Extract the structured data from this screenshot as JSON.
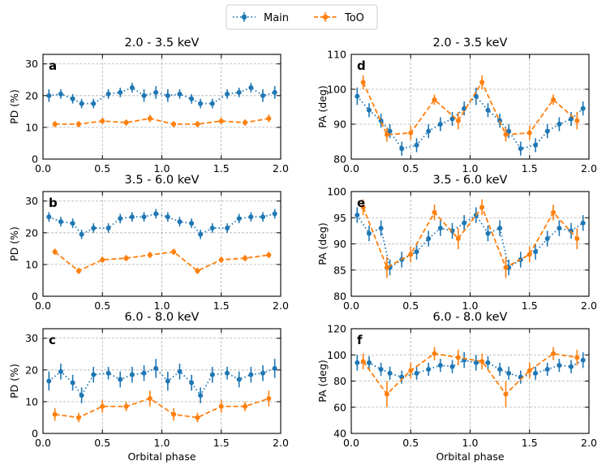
{
  "legend": {
    "location": "upper center",
    "entries": [
      {
        "label": "Main",
        "color": "#1f77b4",
        "style": "dotted"
      },
      {
        "label": "ToO",
        "color": "#ff7f0e",
        "style": "dashed"
      }
    ]
  },
  "chart_data": [
    {
      "panel": "a",
      "type": "line",
      "title": "2.0 - 3.5 keV",
      "xlabel": "",
      "ylabel": "PD (%)",
      "xlim": [
        0.0,
        2.0
      ],
      "ylim": [
        0,
        33
      ],
      "xticks": [
        0.0,
        0.5,
        1.0,
        1.5,
        2.0
      ],
      "yticks": [
        0,
        10,
        20,
        30
      ],
      "series": [
        {
          "name": "Main",
          "x": [
            0.05,
            0.15,
            0.25,
            0.325,
            0.425,
            0.55,
            0.65,
            0.75,
            0.85,
            0.95,
            1.05,
            1.15,
            1.25,
            1.325,
            1.425,
            1.55,
            1.65,
            1.75,
            1.85,
            1.95
          ],
          "y": [
            20,
            20.5,
            19,
            17.5,
            17.5,
            20.5,
            21,
            22.5,
            20,
            21,
            20,
            20.5,
            19,
            17.5,
            17.5,
            20.5,
            21,
            22.5,
            20,
            21
          ],
          "err": [
            2,
            1.5,
            1.5,
            1.5,
            1.5,
            1.5,
            1.5,
            1.5,
            2,
            2,
            2,
            1.5,
            1.5,
            1.5,
            1.5,
            1.5,
            1.5,
            1.5,
            2,
            2
          ]
        },
        {
          "name": "ToO",
          "x": [
            0.1,
            0.3,
            0.5,
            0.7,
            0.9,
            1.1,
            1.3,
            1.5,
            1.7,
            1.9
          ],
          "y": [
            11,
            11,
            12,
            11.5,
            12.8,
            11,
            11,
            12,
            11.5,
            12.8
          ],
          "err": [
            1,
            1,
            1,
            1,
            1.2,
            1,
            1,
            1,
            1,
            1.2
          ]
        }
      ]
    },
    {
      "panel": "b",
      "type": "line",
      "title": "3.5 - 6.0 keV",
      "xlabel": "",
      "ylabel": "PD (%)",
      "xlim": [
        0.0,
        2.0
      ],
      "ylim": [
        0,
        33
      ],
      "xticks": [
        0.0,
        0.5,
        1.0,
        1.5,
        2.0
      ],
      "yticks": [
        0,
        10,
        20,
        30
      ],
      "series": [
        {
          "name": "Main",
          "x": [
            0.05,
            0.15,
            0.25,
            0.325,
            0.425,
            0.55,
            0.65,
            0.75,
            0.85,
            0.95,
            1.05,
            1.15,
            1.25,
            1.325,
            1.425,
            1.55,
            1.65,
            1.75,
            1.85,
            1.95
          ],
          "y": [
            25,
            23.5,
            23,
            19.5,
            21.5,
            21.5,
            24.5,
            25,
            25,
            26,
            25,
            23.5,
            23,
            19.5,
            21.5,
            21.5,
            24.5,
            25,
            25,
            26
          ],
          "err": [
            1.5,
            1.5,
            1.5,
            1.5,
            1.5,
            1.5,
            1.5,
            1.5,
            1.5,
            1.5,
            1.5,
            1.5,
            1.5,
            1.5,
            1.5,
            1.5,
            1.5,
            1.5,
            1.5,
            1.5
          ]
        },
        {
          "name": "ToO",
          "x": [
            0.1,
            0.3,
            0.5,
            0.7,
            0.9,
            1.1,
            1.3,
            1.5,
            1.7,
            1.9
          ],
          "y": [
            14,
            8,
            11.5,
            12,
            13,
            14,
            8,
            11.5,
            12,
            13
          ],
          "err": [
            1,
            1,
            1,
            1,
            1,
            1,
            1,
            1,
            1,
            1
          ]
        }
      ]
    },
    {
      "panel": "c",
      "type": "line",
      "title": "6.0 - 8.0 keV",
      "xlabel": "Orbital phase",
      "ylabel": "PD (%)",
      "xlim": [
        0.0,
        2.0
      ],
      "ylim": [
        0,
        33
      ],
      "xticks": [
        0.0,
        0.5,
        1.0,
        1.5,
        2.0
      ],
      "yticks": [
        0,
        10,
        20,
        30
      ],
      "series": [
        {
          "name": "Main",
          "x": [
            0.05,
            0.15,
            0.25,
            0.325,
            0.425,
            0.55,
            0.65,
            0.75,
            0.85,
            0.95,
            1.05,
            1.15,
            1.25,
            1.325,
            1.425,
            1.55,
            1.65,
            1.75,
            1.85,
            1.95
          ],
          "y": [
            16.5,
            19.5,
            16,
            12,
            18.5,
            19,
            17,
            18.5,
            19,
            20.5,
            16.5,
            19.5,
            16,
            12,
            18.5,
            19,
            17,
            18.5,
            19,
            20.5
          ],
          "err": [
            3,
            2.5,
            2.5,
            2.5,
            2.5,
            2,
            2.5,
            2.5,
            2.5,
            3,
            3,
            2.5,
            2.5,
            2.5,
            2.5,
            2,
            2.5,
            2.5,
            2.5,
            3
          ]
        },
        {
          "name": "ToO",
          "x": [
            0.1,
            0.3,
            0.5,
            0.7,
            0.9,
            1.1,
            1.3,
            1.5,
            1.7,
            1.9
          ],
          "y": [
            6,
            5,
            8.5,
            8.5,
            11,
            6,
            5,
            8.5,
            8.5,
            11
          ],
          "err": [
            2,
            1.5,
            2,
            1.5,
            2.5,
            2,
            1.5,
            2,
            1.5,
            2.5
          ]
        }
      ]
    },
    {
      "panel": "d",
      "type": "line",
      "title": "2.0 - 3.5 keV",
      "xlabel": "",
      "ylabel": "PA (deg)",
      "xlim": [
        0.0,
        2.0
      ],
      "ylim": [
        80,
        110
      ],
      "xticks": [
        0.0,
        0.5,
        1.0,
        1.5,
        2.0
      ],
      "yticks": [
        80,
        90,
        100,
        110
      ],
      "series": [
        {
          "name": "Main",
          "x": [
            0.05,
            0.15,
            0.25,
            0.325,
            0.425,
            0.55,
            0.65,
            0.75,
            0.85,
            0.95,
            1.05,
            1.15,
            1.25,
            1.325,
            1.425,
            1.55,
            1.65,
            1.75,
            1.85,
            1.95
          ],
          "y": [
            98,
            94,
            91,
            88,
            83,
            84,
            88,
            90,
            91.5,
            94.5,
            98,
            94,
            91,
            88,
            83,
            84,
            88,
            90,
            91.5,
            94.5
          ],
          "err": [
            2.5,
            2,
            2,
            2,
            2,
            2,
            2,
            2,
            2,
            2,
            2.5,
            2,
            2,
            2,
            2,
            2,
            2,
            2,
            2,
            2
          ]
        },
        {
          "name": "ToO",
          "x": [
            0.1,
            0.3,
            0.5,
            0.7,
            0.9,
            1.1,
            1.3,
            1.5,
            1.7,
            1.9
          ],
          "y": [
            102,
            87,
            87.5,
            97,
            91,
            102,
            87,
            87.5,
            97,
            91
          ],
          "err": [
            2,
            2,
            2,
            1.5,
            2.5,
            2,
            2,
            2,
            1.5,
            2.5
          ]
        }
      ]
    },
    {
      "panel": "e",
      "type": "line",
      "title": "3.5 - 6.0 keV",
      "xlabel": "",
      "ylabel": "PA (deg)",
      "xlim": [
        0.0,
        2.0
      ],
      "ylim": [
        80,
        100
      ],
      "xticks": [
        0.0,
        0.5,
        1.0,
        1.5,
        2.0
      ],
      "yticks": [
        80,
        85,
        90,
        95,
        100
      ],
      "series": [
        {
          "name": "Main",
          "x": [
            0.05,
            0.15,
            0.25,
            0.325,
            0.425,
            0.55,
            0.65,
            0.75,
            0.85,
            0.95,
            1.05,
            1.15,
            1.25,
            1.325,
            1.425,
            1.55,
            1.65,
            1.75,
            1.85,
            1.95
          ],
          "y": [
            95.5,
            92,
            93,
            85.5,
            87,
            88.5,
            91,
            93,
            92.5,
            94,
            95.5,
            92,
            93,
            85.5,
            87,
            88.5,
            91,
            93,
            92.5,
            94
          ],
          "err": [
            1.5,
            1.5,
            1.5,
            1.5,
            1.5,
            1.5,
            1.5,
            1.5,
            1.5,
            1.5,
            1.5,
            1.5,
            1.5,
            1.5,
            1.5,
            1.5,
            1.5,
            1.5,
            1.5,
            1.5
          ]
        },
        {
          "name": "ToO",
          "x": [
            0.1,
            0.3,
            0.5,
            0.7,
            0.9,
            1.1,
            1.3,
            1.5,
            1.7,
            1.9
          ],
          "y": [
            97,
            85.5,
            88,
            96,
            91,
            97,
            85.5,
            88,
            96,
            91
          ],
          "err": [
            1.5,
            2,
            1.5,
            1.5,
            2,
            1.5,
            2,
            1.5,
            1.5,
            2
          ]
        }
      ]
    },
    {
      "panel": "f",
      "type": "line",
      "title": "6.0 - 8.0 keV",
      "xlabel": "Orbital phase",
      "ylabel": "PA (deg)",
      "xlim": [
        0.0,
        2.0
      ],
      "ylim": [
        40,
        120
      ],
      "xticks": [
        0.0,
        0.5,
        1.0,
        1.5,
        2.0
      ],
      "yticks": [
        40,
        60,
        80,
        100,
        120
      ],
      "series": [
        {
          "name": "Main",
          "x": [
            0.05,
            0.15,
            0.25,
            0.325,
            0.425,
            0.55,
            0.65,
            0.75,
            0.85,
            0.95,
            1.05,
            1.15,
            1.25,
            1.325,
            1.425,
            1.55,
            1.65,
            1.75,
            1.85,
            1.95
          ],
          "y": [
            94,
            94,
            89,
            86,
            83,
            86,
            89,
            92,
            91,
            96,
            94,
            94,
            89,
            86,
            83,
            86,
            89,
            92,
            91,
            96
          ],
          "err": [
            6,
            5,
            5,
            5,
            5,
            5,
            5,
            5,
            5,
            6,
            6,
            5,
            5,
            5,
            5,
            5,
            5,
            5,
            5,
            6
          ]
        },
        {
          "name": "ToO",
          "x": [
            0.1,
            0.3,
            0.5,
            0.7,
            0.9,
            1.1,
            1.3,
            1.5,
            1.7,
            1.9
          ],
          "y": [
            95,
            70,
            88,
            101,
            98,
            95,
            70,
            88,
            101,
            98
          ],
          "err": [
            6,
            10,
            6,
            5,
            6,
            6,
            10,
            6,
            5,
            6
          ]
        }
      ]
    }
  ]
}
